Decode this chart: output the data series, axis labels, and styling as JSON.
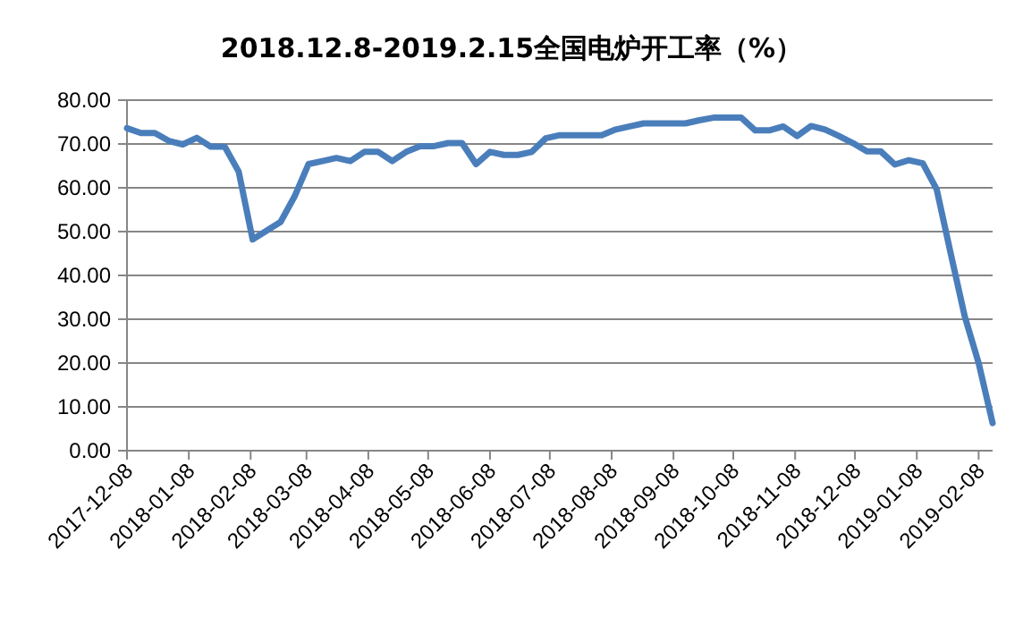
{
  "chart_data": {
    "type": "line",
    "title": "2018.12.8-2019.2.15全国电炉开工率（%）",
    "x": [
      "2017-12-08",
      "2017-12-15",
      "2017-12-22",
      "2017-12-29",
      "2018-01-05",
      "2018-01-12",
      "2018-01-19",
      "2018-01-26",
      "2018-02-02",
      "2018-02-09",
      "2018-02-16",
      "2018-02-23",
      "2018-03-02",
      "2018-03-09",
      "2018-03-16",
      "2018-03-23",
      "2018-03-30",
      "2018-04-06",
      "2018-04-13",
      "2018-04-20",
      "2018-04-27",
      "2018-05-04",
      "2018-05-11",
      "2018-05-18",
      "2018-05-25",
      "2018-06-01",
      "2018-06-08",
      "2018-06-15",
      "2018-06-22",
      "2018-06-29",
      "2018-07-06",
      "2018-07-13",
      "2018-07-20",
      "2018-07-27",
      "2018-08-03",
      "2018-08-10",
      "2018-08-17",
      "2018-08-24",
      "2018-08-31",
      "2018-09-07",
      "2018-09-14",
      "2018-09-21",
      "2018-09-28",
      "2018-10-05",
      "2018-10-12",
      "2018-10-19",
      "2018-10-26",
      "2018-11-02",
      "2018-11-09",
      "2018-11-16",
      "2018-11-23",
      "2018-11-30",
      "2018-12-07",
      "2018-12-14",
      "2018-12-21",
      "2018-12-28",
      "2019-01-04",
      "2019-01-11",
      "2019-01-18",
      "2019-01-25",
      "2019-02-01",
      "2019-02-08",
      "2019-02-15"
    ],
    "series": [
      {
        "color": "#4a7ebb",
        "values": [
          73.6,
          72.5,
          72.5,
          70.7,
          69.9,
          71.4,
          69.4,
          69.4,
          63.7,
          48.2,
          50.2,
          52.2,
          58,
          65.4,
          66.1,
          66.8,
          66.1,
          68.2,
          68.2,
          66.1,
          68.2,
          69.5,
          69.5,
          70.2,
          70.2,
          65.4,
          68.2,
          67.5,
          67.5,
          68.2,
          71.3,
          72,
          72,
          72,
          72,
          73.3,
          74,
          74.7,
          74.7,
          74.7,
          74.7,
          75.4,
          76,
          76,
          76,
          73.1,
          73.1,
          74,
          71.8,
          74.1,
          73.3,
          71.8,
          70.2,
          68.3,
          68.3,
          65.3,
          66.3,
          65.6,
          59.6,
          45,
          30.7,
          20,
          6.3
        ]
      }
    ],
    "xlim": [
      "2017-12-08",
      "2019-02-15"
    ],
    "xticks": [
      "2017-12-08",
      "2018-01-08",
      "2018-02-08",
      "2018-03-08",
      "2018-04-08",
      "2018-05-08",
      "2018-06-08",
      "2018-07-08",
      "2018-08-08",
      "2018-09-08",
      "2018-10-08",
      "2018-11-08",
      "2018-12-08",
      "2019-01-08",
      "2019-02-08"
    ],
    "ylim": [
      0,
      80
    ],
    "yticks": [
      {
        "value": 0,
        "label": "0.00"
      },
      {
        "value": 10,
        "label": "10.00"
      },
      {
        "value": 20,
        "label": "20.00"
      },
      {
        "value": 30,
        "label": "30.00"
      },
      {
        "value": 40,
        "label": "40.00"
      },
      {
        "value": 50,
        "label": "50.00"
      },
      {
        "value": 60,
        "label": "60.00"
      },
      {
        "value": 70,
        "label": "70.00"
      },
      {
        "value": 80,
        "label": "80.00"
      }
    ],
    "grid": "y",
    "marker": "none",
    "line_style": "solid"
  }
}
